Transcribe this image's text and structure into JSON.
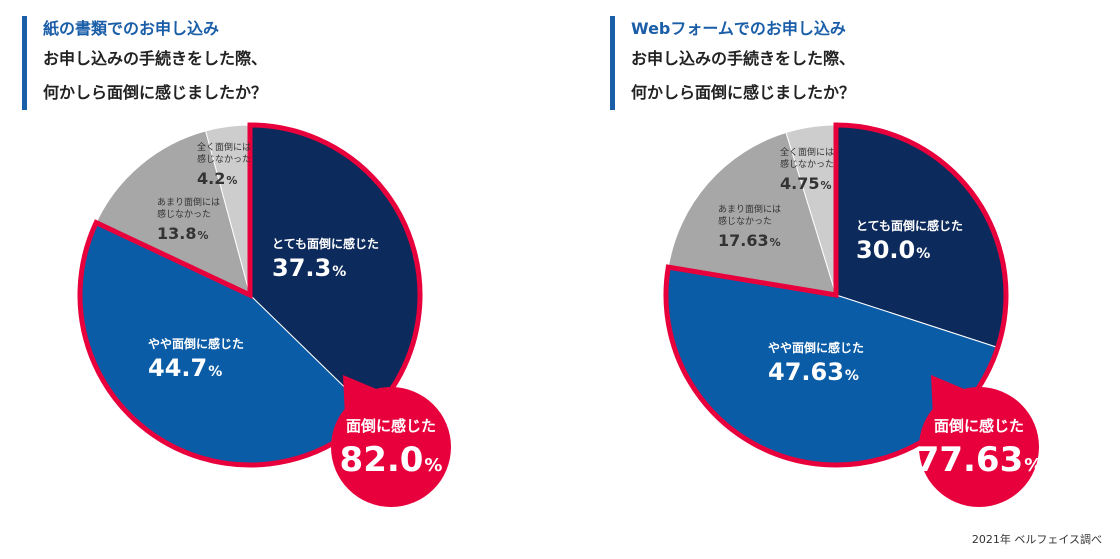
{
  "chart_data": [
    {
      "type": "pie",
      "title": "紙の書類でのお申し込み",
      "question_line1": "お申し込みの手続きをした際、",
      "question_line2": "何かしら面倒に感じましたか？",
      "slices": [
        {
          "label": "とても面倒に感じた",
          "value": 37.3,
          "display": "37.3",
          "color": "#0d2a5c"
        },
        {
          "label": "やや面倒に感じた",
          "value": 44.7,
          "display": "44.7",
          "color": "#0a5ca7"
        },
        {
          "label_lines": [
            "あまり面倒には",
            "感じなかった"
          ],
          "value": 13.8,
          "display": "13.8",
          "color": "#a7a7a7"
        },
        {
          "label_lines": [
            "全く面倒には",
            "感じなかった"
          ],
          "value": 4.2,
          "display": "4.2",
          "color": "#cdcdcd"
        }
      ],
      "callout": {
        "label": "面倒に感じた",
        "value": "82.0",
        "color": "#e8003d"
      }
    },
    {
      "type": "pie",
      "title": "Webフォームでのお申し込み",
      "question_line1": "お申し込みの手続きをした際、",
      "question_line2": "何かしら面倒に感じましたか？",
      "slices": [
        {
          "label": "とても面倒に感じた",
          "value": 30.0,
          "display": "30.0",
          "color": "#0d2a5c"
        },
        {
          "label": "やや面倒に感じた",
          "value": 47.63,
          "display": "47.63",
          "color": "#0a5ca7"
        },
        {
          "label_lines": [
            "あまり面倒には",
            "感じなかった"
          ],
          "value": 17.63,
          "display": "17.63",
          "color": "#a7a7a7"
        },
        {
          "label_lines": [
            "全く面倒には",
            "感じなかった"
          ],
          "value": 4.75,
          "display": "4.75",
          "color": "#cdcdcd"
        }
      ],
      "callout": {
        "label": "面倒に感じた",
        "value": "77.63",
        "color": "#e8003d"
      }
    }
  ],
  "percent_unit": "%",
  "footer": "2021年 ベルフェイス調べ"
}
